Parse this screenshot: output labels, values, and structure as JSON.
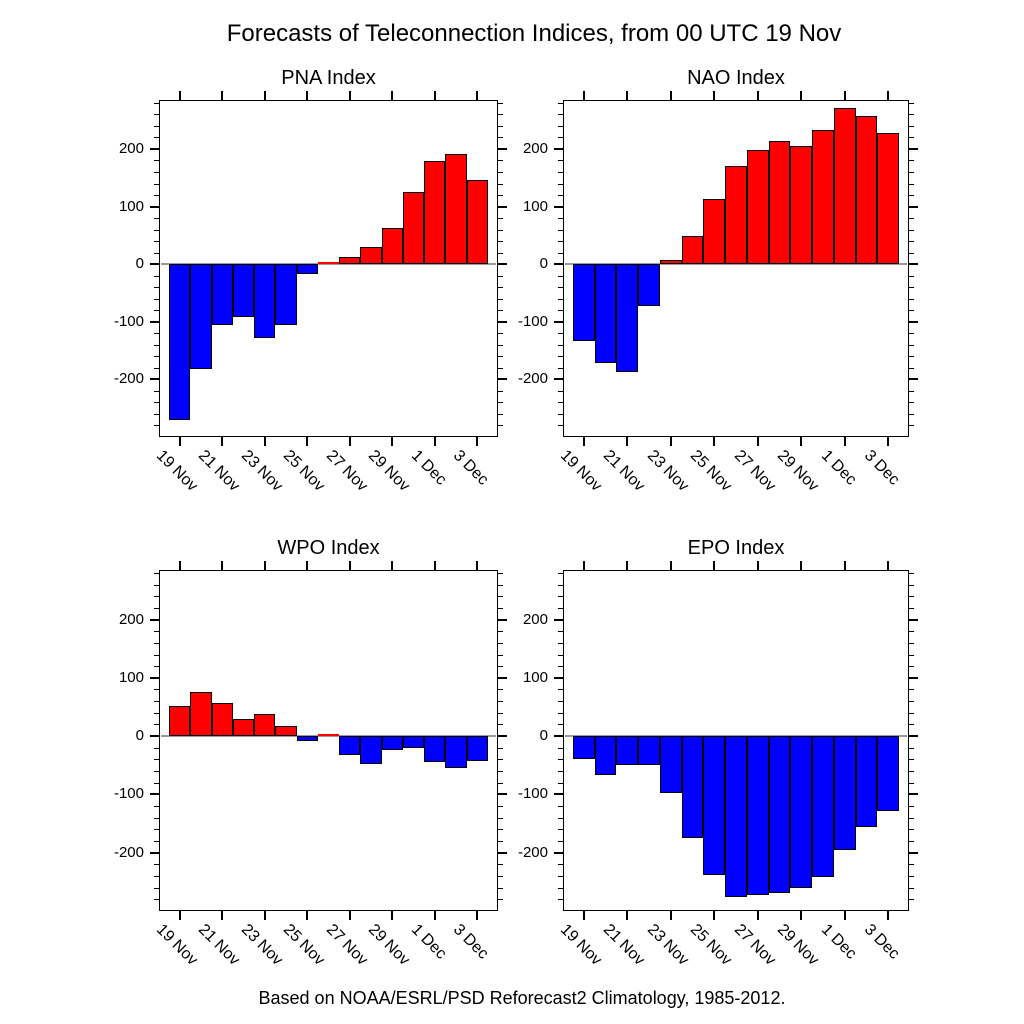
{
  "page": {
    "title": "Forecasts of Teleconnection Indices, from 00 UTC 19 Nov",
    "caption": "Based on NOAA/ESRL/PSD Reforecast2 Climatology, 1985-2012."
  },
  "colors": {
    "positive_bar": "#ff0000",
    "negative_bar": "#0000ff",
    "zero_line": "#9a9a9a",
    "axis": "#000000",
    "background": "#ffffff"
  },
  "chart_data": [
    {
      "type": "bar",
      "title": "PNA Index",
      "categories": [
        "19 Nov",
        "20 Nov",
        "21 Nov",
        "22 Nov",
        "23 Nov",
        "24 Nov",
        "25 Nov",
        "26 Nov",
        "27 Nov",
        "28 Nov",
        "29 Nov",
        "30 Nov",
        "1 Dec",
        "2 Dec",
        "3 Dec"
      ],
      "values": [
        -271,
        -182,
        -105,
        -92,
        -128,
        -106,
        -17,
        3,
        13,
        29,
        62,
        126,
        179,
        192,
        146
      ],
      "xtick_labels": [
        "19 Nov",
        "21 Nov",
        "23 Nov",
        "25 Nov",
        "27 Nov",
        "29 Nov",
        "1 Dec",
        "3 Dec"
      ],
      "ytick_labels": [
        "200",
        "100",
        "0",
        "-100",
        "-200"
      ],
      "ytick_values": [
        200,
        100,
        0,
        -100,
        -200
      ],
      "ylim": [
        -300,
        285
      ],
      "minor_tick_step": 20,
      "grid": "off",
      "color_rule": "red above zero, blue below zero"
    },
    {
      "type": "bar",
      "title": "NAO Index",
      "categories": [
        "19 Nov",
        "20 Nov",
        "21 Nov",
        "22 Nov",
        "23 Nov",
        "24 Nov",
        "25 Nov",
        "26 Nov",
        "27 Nov",
        "28 Nov",
        "29 Nov",
        "30 Nov",
        "1 Dec",
        "2 Dec",
        "3 Dec"
      ],
      "values": [
        -134,
        -171,
        -188,
        -73,
        8,
        49,
        113,
        170,
        198,
        213,
        205,
        233,
        271,
        257,
        227
      ],
      "xtick_labels": [
        "19 Nov",
        "21 Nov",
        "23 Nov",
        "25 Nov",
        "27 Nov",
        "29 Nov",
        "1 Dec",
        "3 Dec"
      ],
      "ytick_labels": [
        "200",
        "100",
        "0",
        "-100",
        "-200"
      ],
      "ytick_values": [
        200,
        100,
        0,
        -100,
        -200
      ],
      "ylim": [
        -300,
        285
      ],
      "minor_tick_step": 20,
      "grid": "off",
      "color_rule": "red above zero, blue below zero"
    },
    {
      "type": "bar",
      "title": "WPO Index",
      "categories": [
        "19 Nov",
        "20 Nov",
        "21 Nov",
        "22 Nov",
        "23 Nov",
        "24 Nov",
        "25 Nov",
        "26 Nov",
        "27 Nov",
        "28 Nov",
        "29 Nov",
        "30 Nov",
        "1 Dec",
        "2 Dec",
        "3 Dec"
      ],
      "values": [
        52,
        75,
        56,
        30,
        38,
        17,
        -8,
        4,
        -33,
        -48,
        -24,
        -20,
        -44,
        -54,
        -43
      ],
      "xtick_labels": [
        "19 Nov",
        "21 Nov",
        "23 Nov",
        "25 Nov",
        "27 Nov",
        "29 Nov",
        "1 Dec",
        "3 Dec"
      ],
      "ytick_labels": [
        "200",
        "100",
        "0",
        "-100",
        "-200"
      ],
      "ytick_values": [
        200,
        100,
        0,
        -100,
        -200
      ],
      "ylim": [
        -300,
        285
      ],
      "minor_tick_step": 20,
      "grid": "off",
      "color_rule": "red above zero, blue below zero"
    },
    {
      "type": "bar",
      "title": "EPO Index",
      "categories": [
        "19 Nov",
        "20 Nov",
        "21 Nov",
        "22 Nov",
        "23 Nov",
        "24 Nov",
        "25 Nov",
        "26 Nov",
        "27 Nov",
        "28 Nov",
        "29 Nov",
        "30 Nov",
        "1 Dec",
        "2 Dec",
        "3 Dec"
      ],
      "values": [
        -39,
        -66,
        -50,
        -50,
        -97,
        -174,
        -238,
        -276,
        -272,
        -269,
        -260,
        -242,
        -196,
        -156,
        -129
      ],
      "xtick_labels": [
        "19 Nov",
        "21 Nov",
        "23 Nov",
        "25 Nov",
        "27 Nov",
        "29 Nov",
        "1 Dec",
        "3 Dec"
      ],
      "ytick_labels": [
        "200",
        "100",
        "0",
        "-100",
        "-200"
      ],
      "ytick_values": [
        200,
        100,
        0,
        -100,
        -200
      ],
      "ylim": [
        -300,
        285
      ],
      "minor_tick_step": 20,
      "grid": "off",
      "color_rule": "red above zero, blue below zero"
    }
  ]
}
